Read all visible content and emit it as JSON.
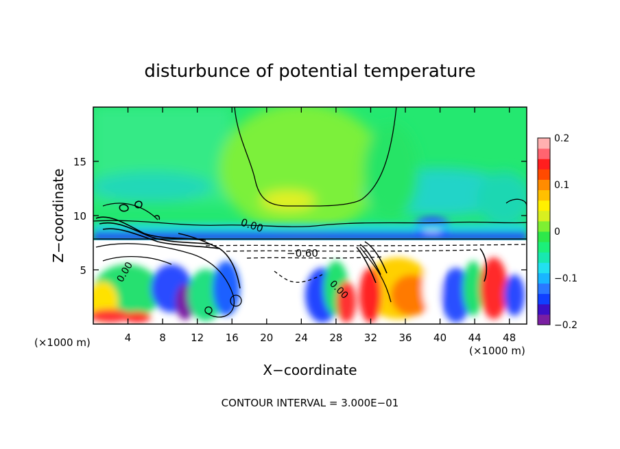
{
  "chart_data": {
    "type": "heatmap",
    "title": "disturbunce of potential temperature",
    "xlabel": "X−coordinate",
    "ylabel": "Z−coordinate",
    "x_unit_left": "(×1000 m)",
    "x_unit_right": "(×1000 m)",
    "xlim": [
      0,
      50
    ],
    "ylim": [
      0,
      20
    ],
    "x_ticks": [
      4,
      8,
      12,
      16,
      20,
      24,
      28,
      32,
      36,
      40,
      44,
      48
    ],
    "y_ticks": [
      5,
      10,
      15
    ],
    "colorbar": {
      "ticks": [
        0.2,
        0.1,
        0,
        -0.1,
        -0.2
      ],
      "tick_labels": [
        "0.2",
        "0.1",
        "0",
        "−0.1",
        "−0.2"
      ],
      "colors": [
        "#7a1fa2",
        "#3b10c8",
        "#1040ff",
        "#2a78ff",
        "#19b5ff",
        "#22e0f0",
        "#18e8b0",
        "#1cf07a",
        "#2ee84a",
        "#7ef032",
        "#d8f020",
        "#fff000",
        "#ffc000",
        "#ff8c00",
        "#ff4a00",
        "#ff1e1e",
        "#ff6470",
        "#ffb0b0"
      ]
    },
    "contour_labels": [
      {
        "text": "0.00",
        "x": 18.6,
        "z": 9.3
      },
      {
        "text": "−0.60",
        "x": 24.0,
        "z": 6.5
      },
      {
        "text": "0.00",
        "x": 4.0,
        "z": 4.5
      },
      {
        "text": "0.00",
        "x": 28.0,
        "z": 3.6
      }
    ],
    "footer": "CONTOUR INTERVAL = 3.000E−01",
    "grid": false
  }
}
